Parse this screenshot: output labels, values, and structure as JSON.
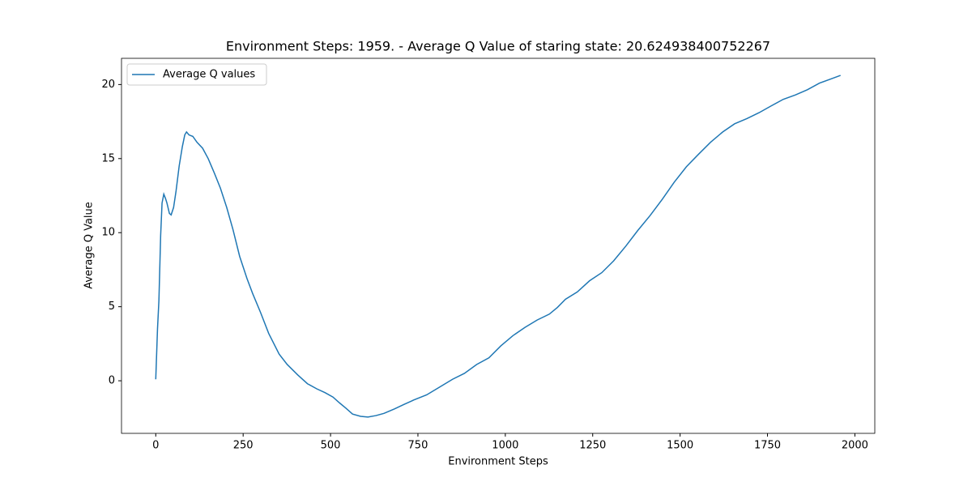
{
  "chart_data": {
    "type": "line",
    "title": "Environment Steps: 1959. - Average Q Value of staring state: 20.624938400752267",
    "x_label": "Environment Steps",
    "y_label": "Average Q Value",
    "x": [
      0,
      5,
      9,
      14,
      18,
      23,
      28,
      32,
      39,
      44,
      51,
      58,
      67,
      76,
      83,
      88,
      95,
      106,
      118,
      134,
      150,
      168,
      185,
      203,
      221,
      240,
      261,
      277,
      300,
      323,
      353,
      376,
      406,
      434,
      461,
      484,
      507,
      526,
      544,
      563,
      586,
      607,
      630,
      653,
      683,
      710,
      738,
      775,
      814,
      849,
      883,
      918,
      953,
      987,
      1022,
      1056,
      1091,
      1126,
      1149,
      1172,
      1206,
      1241,
      1276,
      1310,
      1345,
      1379,
      1414,
      1449,
      1483,
      1518,
      1553,
      1587,
      1622,
      1656,
      1691,
      1726,
      1760,
      1795,
      1830,
      1864,
      1899,
      1934,
      1959
    ],
    "series": [
      {
        "name": "Average Q values",
        "color": "#1f77b4",
        "values": [
          0.1,
          3.5,
          5.4,
          9.8,
          12.0,
          12.6,
          12.3,
          12.0,
          11.3,
          11.2,
          11.7,
          12.8,
          14.5,
          15.8,
          16.6,
          16.8,
          16.6,
          16.5,
          16.1,
          15.7,
          15.0,
          14.0,
          13.0,
          11.7,
          10.2,
          8.4,
          6.9,
          5.9,
          4.6,
          3.2,
          1.8,
          1.1,
          0.4,
          -0.2,
          -0.55,
          -0.8,
          -1.1,
          -1.5,
          -1.85,
          -2.25,
          -2.4,
          -2.45,
          -2.35,
          -2.2,
          -1.9,
          -1.6,
          -1.3,
          -0.95,
          -0.4,
          0.1,
          0.5,
          1.1,
          1.55,
          2.35,
          3.05,
          3.6,
          4.1,
          4.5,
          4.95,
          5.5,
          6.0,
          6.75,
          7.3,
          8.1,
          9.1,
          10.15,
          11.15,
          12.25,
          13.4,
          14.45,
          15.3,
          16.1,
          16.8,
          17.35,
          17.7,
          18.1,
          18.55,
          19.0,
          19.3,
          19.65,
          20.1,
          20.4,
          20.62
        ]
      }
    ],
    "xlim": [
      -98,
      2057
    ],
    "xticks": [
      0,
      250,
      500,
      750,
      1000,
      1250,
      1500,
      1750,
      2000
    ],
    "ylim": [
      -3.55,
      21.77
    ],
    "yticks": [
      0,
      5,
      10,
      15,
      20
    ],
    "legend": "upper left"
  }
}
